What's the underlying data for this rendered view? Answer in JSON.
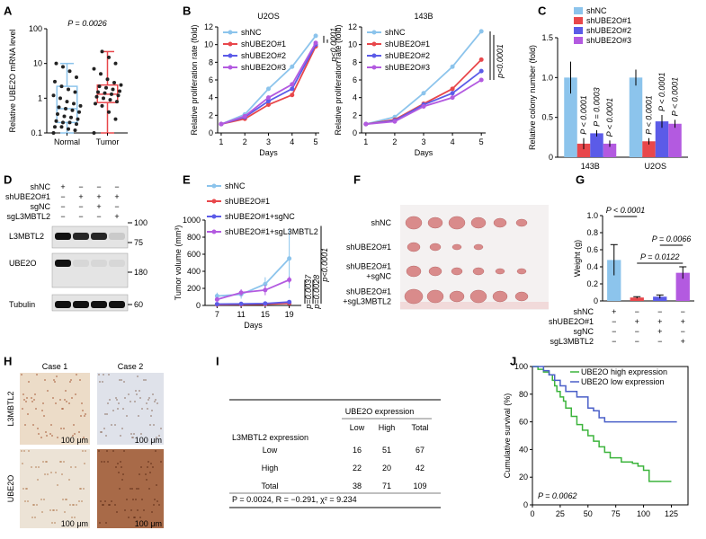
{
  "panel_labels": [
    "A",
    "B",
    "C",
    "D",
    "E",
    "F",
    "G",
    "H",
    "I",
    "J"
  ],
  "chart_data": [
    {
      "type": "box",
      "ylabel": "Relative UBE2O mRNA level",
      "annotation": "P = 0.0026",
      "categories": [
        "Normal",
        "Tumor"
      ],
      "colors": [
        "#8cc4ec",
        "#e8474b"
      ],
      "log": true,
      "ylim": [
        0.1,
        100
      ],
      "yticks": [
        0.1,
        1,
        10,
        100
      ],
      "min": [
        0.1,
        0.1
      ],
      "q1": [
        0.2,
        0.75
      ],
      "median": [
        0.5,
        1.3
      ],
      "q3": [
        2.2,
        2.4
      ],
      "max": [
        10,
        22
      ],
      "points": [
        [
          0.1,
          0.12,
          0.13,
          0.15,
          0.15,
          0.18,
          0.2,
          0.2,
          0.22,
          0.25,
          0.28,
          0.3,
          0.35,
          0.4,
          0.45,
          0.5,
          0.55,
          0.6,
          0.7,
          0.8,
          1.0,
          1.2,
          1.5,
          1.8,
          2.2,
          3,
          4,
          6,
          8,
          10
        ],
        [
          0.1,
          0.25,
          0.4,
          0.6,
          0.7,
          0.8,
          0.9,
          1.0,
          1.1,
          1.2,
          1.3,
          1.4,
          1.5,
          1.6,
          1.8,
          2.0,
          2.2,
          2.4,
          2.8,
          3.5,
          5,
          7,
          10,
          15,
          22
        ]
      ]
    },
    {
      "type": "line",
      "title": "U2OS",
      "xlabel": "Days",
      "ylabel": "Relative proliferation rate (fold)",
      "annotation": "p<0.0001",
      "x": [
        1,
        2,
        3,
        4,
        5
      ],
      "xlim": [
        0.85,
        5.15
      ],
      "xticks": [
        1,
        2,
        3,
        4,
        5
      ],
      "ylim": [
        0,
        12
      ],
      "yticks": [
        0,
        2,
        4,
        6,
        8,
        10,
        12
      ],
      "series": [
        {
          "name": "shNC",
          "color": "#8cc4ec",
          "values": [
            1,
            2.1,
            5,
            7.5,
            11
          ]
        },
        {
          "name": "shUBE2O#1",
          "color": "#e8474b",
          "values": [
            1,
            1.6,
            3.2,
            4.3,
            9.8
          ]
        },
        {
          "name": "shUBE2O#2",
          "color": "#5b5be8",
          "values": [
            1,
            1.8,
            3.6,
            5,
            10
          ]
        },
        {
          "name": "shUBE2O#3",
          "color": "#b35ae0",
          "values": [
            1,
            1.9,
            4,
            5.5,
            10.2
          ]
        }
      ]
    },
    {
      "type": "line",
      "title": "143B",
      "xlabel": "Days",
      "ylabel": "Relative proliferation rate (fold)",
      "annotation": "p<0.0001",
      "x": [
        1,
        2,
        3,
        4,
        5
      ],
      "xlim": [
        0.85,
        5.15
      ],
      "xticks": [
        1,
        2,
        3,
        4,
        5
      ],
      "ylim": [
        0,
        12
      ],
      "yticks": [
        0,
        2,
        4,
        6,
        8,
        10,
        12
      ],
      "series": [
        {
          "name": "shNC",
          "color": "#8cc4ec",
          "values": [
            1,
            1.8,
            4.5,
            7.5,
            11.5
          ]
        },
        {
          "name": "shUBE2O#1",
          "color": "#e8474b",
          "values": [
            1,
            1.5,
            3.3,
            5,
            8.3
          ]
        },
        {
          "name": "shUBE2O#2",
          "color": "#5b5be8",
          "values": [
            1,
            1.4,
            3.2,
            4.5,
            7
          ]
        },
        {
          "name": "shUBE2O#3",
          "color": "#b35ae0",
          "values": [
            1,
            1.3,
            3,
            4,
            6
          ]
        }
      ]
    },
    {
      "type": "groupedbar",
      "ylabel": "Relative colony number (fold)",
      "categories": [
        "143B",
        "U2OS"
      ],
      "ylim": [
        0,
        1.5
      ],
      "yticks": [
        0,
        0.5,
        {
          "value": 1,
          "label": "1.0"
        },
        1.5
      ],
      "annotations": [
        "P < 0.0001",
        "P = 0.0003",
        "P < 0.0001",
        "P < 0.0001",
        "P < 0.0001",
        "P < 0.0001"
      ],
      "series": [
        {
          "name": "shNC",
          "color": "#8cc4ec",
          "values": [
            1.0,
            1.0
          ],
          "errors": [
            0.2,
            0.1
          ]
        },
        {
          "name": "shUBE2O#1",
          "color": "#e8474b",
          "values": [
            0.17,
            0.2
          ],
          "errors": [
            0.07,
            0.04
          ]
        },
        {
          "name": "shUBE2O#2",
          "color": "#5b5be8",
          "values": [
            0.3,
            0.45
          ],
          "errors": [
            0.04,
            0.08
          ]
        },
        {
          "name": "shUBE2O#3",
          "color": "#b35ae0",
          "values": [
            0.17,
            0.42
          ],
          "errors": [
            0.04,
            0.05
          ]
        }
      ]
    },
    {
      "type": "line",
      "xlabel": "Days",
      "ylabel": "Tumor volume (mm³)",
      "annotations": [
        "p=0.0037",
        "p=0.0028",
        "p<0.0001"
      ],
      "x": [
        7,
        11,
        15,
        19
      ],
      "xlim": [
        5,
        21
      ],
      "xticks": [
        7,
        11,
        15,
        19
      ],
      "ylim": [
        0,
        1000
      ],
      "yticks": [
        0,
        200,
        400,
        600,
        800,
        1000
      ],
      "series": [
        {
          "name": "shNC",
          "color": "#8cc4ec",
          "values": [
            110,
            130,
            250,
            550
          ],
          "errors": [
            40,
            50,
            80,
            350
          ]
        },
        {
          "name": "shUBE2O#1",
          "color": "#e8474b",
          "values": [
            10,
            12,
            15,
            25
          ],
          "errors": [
            5,
            5,
            5,
            10
          ]
        },
        {
          "name": "shUBE2O#1+sgNC",
          "color": "#5b5be8",
          "values": [
            15,
            18,
            22,
            40
          ],
          "errors": [
            10,
            10,
            10,
            15
          ]
        },
        {
          "name": "shUBE2O#1+sgL3MBTL2",
          "color": "#b35ae0",
          "values": [
            70,
            150,
            180,
            300
          ],
          "errors": [
            30,
            40,
            60,
            40
          ]
        }
      ]
    },
    {
      "type": "bar",
      "ylabel": "Weight (g)",
      "colors": [
        "#8cc4ec",
        "#e8474b",
        "#5b5be8",
        "#b35ae0"
      ],
      "values": [
        0.48,
        0.04,
        0.05,
        0.33
      ],
      "errors": [
        0.18,
        0.01,
        0.02,
        0.07
      ],
      "ylim": [
        0,
        1
      ],
      "yticks": [
        0,
        0.2,
        0.4,
        0.6,
        0.8,
        {
          "value": 1,
          "label": "1.0"
        }
      ],
      "annotations": [
        "P < 0.0001",
        "P = 0.0122",
        "P = 0.0066"
      ],
      "conditions": {
        "rows": [
          "shNC",
          "shUBE2O#1",
          "sgNC",
          "sgL3MBTL2"
        ],
        "signs": [
          [
            "+",
            "−",
            "−",
            "−"
          ],
          [
            "−",
            "+",
            "+",
            "+"
          ],
          [
            "−",
            "−",
            "+",
            "−"
          ],
          [
            "−",
            "−",
            "−",
            "+"
          ]
        ]
      }
    },
    {
      "type": "step",
      "ylabel": "Cumulative survival (%)",
      "annotation": "P = 0.0062",
      "xlim": [
        0,
        140
      ],
      "xticks": [
        0,
        25,
        50,
        75,
        100,
        125
      ],
      "ylim": [
        0,
        100
      ],
      "yticks": [
        0,
        20,
        40,
        60,
        80,
        100
      ],
      "series": [
        {
          "name": "UBE2O high expression",
          "color": "#3cb43c",
          "x": [
            0,
            5,
            10,
            15,
            18,
            20,
            22,
            25,
            28,
            30,
            35,
            40,
            45,
            50,
            55,
            60,
            65,
            70,
            80,
            90,
            95,
            100,
            105,
            125
          ],
          "values": [
            100,
            98,
            96,
            94,
            90,
            86,
            82,
            78,
            75,
            70,
            64,
            58,
            54,
            50,
            46,
            42,
            38,
            34,
            31,
            30,
            28,
            25,
            17,
            17
          ]
        },
        {
          "name": "UBE2O low expression",
          "color": "#4a5fc8",
          "x": [
            0,
            10,
            15,
            20,
            25,
            30,
            40,
            50,
            55,
            60,
            65,
            130
          ],
          "values": [
            100,
            97,
            94,
            90,
            86,
            82,
            78,
            70,
            68,
            63,
            60,
            60
          ]
        }
      ]
    }
  ],
  "blot": {
    "conditions": {
      "rows": [
        "shNC",
        "shUBE2O#1",
        "sgNC",
        "sgL3MBTL2"
      ],
      "signs": [
        [
          "+",
          "−",
          "−",
          "−"
        ],
        [
          "−",
          "+",
          "+",
          "+"
        ],
        [
          "−",
          "−",
          "+",
          "−"
        ],
        [
          "−",
          "−",
          "−",
          "+"
        ]
      ]
    },
    "bands": [
      "L3MBTL2",
      "UBE2O",
      "Tubulin"
    ],
    "markers": [
      100,
      75,
      180,
      60
    ]
  },
  "tumor_photo": {
    "groups": [
      [
        "shNC"
      ],
      [
        "shUBE2O#1"
      ],
      [
        "shUBE2O#1",
        "+sgNC"
      ],
      [
        "shUBE2O#1",
        "+sgL3MBTL2"
      ]
    ]
  },
  "ihc": {
    "columns": [
      "Case 1",
      "Case 2"
    ],
    "rows": [
      "L3MBTL2",
      "UBE2O"
    ],
    "scale_bar": "100 μm"
  },
  "table": {
    "group_header": "UBE2O expression",
    "row_header": "L3MBTL2 expression",
    "columns": [
      "Low",
      "High",
      "Total"
    ],
    "rows": [
      {
        "label": "Low",
        "cells": [
          16,
          51,
          67
        ]
      },
      {
        "label": "High",
        "cells": [
          22,
          20,
          42
        ]
      },
      {
        "label": "Total",
        "cells": [
          38,
          71,
          109
        ]
      }
    ],
    "footer": "P = 0.0024,  R = −0.291,  χ² = 9.234"
  }
}
